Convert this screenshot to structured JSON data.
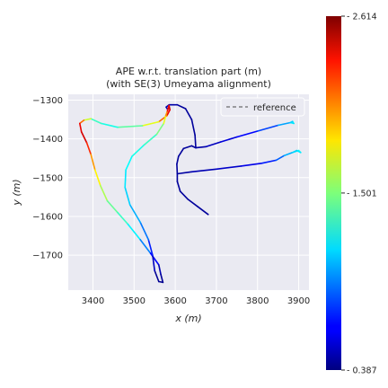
{
  "chart_data": {
    "type": "line",
    "title": "APE w.r.t. translation part (m)",
    "subtitle": "(with SE(3) Umeyama alignment)",
    "xlabel": "x (m)",
    "ylabel": "y (m)",
    "xlim": [
      3340,
      3925
    ],
    "ylim": [
      -1790,
      -1285
    ],
    "xticks": [
      3400,
      3500,
      3600,
      3700,
      3800,
      3900
    ],
    "yticks": [
      -1300,
      -1400,
      -1500,
      -1600,
      -1700
    ],
    "xtick_labels": [
      "3400",
      "3500",
      "3600",
      "3700",
      "3800",
      "3900"
    ],
    "ytick_labels": [
      "−1300",
      "−1400",
      "−1500",
      "−1600",
      "−1700"
    ],
    "grid": true,
    "legend": {
      "position": "top-right",
      "entries": [
        "reference"
      ]
    },
    "colorbar": {
      "colormap": "jet",
      "min": 0.387,
      "max": 2.614,
      "ticks": [
        0.387,
        1.501,
        2.614
      ],
      "tick_labels": [
        "0.387",
        "1.501",
        "2.614"
      ]
    },
    "series": [
      {
        "points": [
          [
            3680,
            -1595,
            0.45
          ],
          [
            3655,
            -1575,
            0.45
          ],
          [
            3630,
            -1555,
            0.45
          ],
          [
            3612,
            -1535,
            0.45
          ],
          [
            3605,
            -1510,
            0.45
          ],
          [
            3605,
            -1490,
            0.45
          ],
          [
            3640,
            -1485,
            0.48
          ],
          [
            3700,
            -1478,
            0.52
          ],
          [
            3760,
            -1470,
            0.58
          ],
          [
            3810,
            -1463,
            0.65
          ],
          [
            3845,
            -1455,
            0.8
          ],
          [
            3865,
            -1443,
            0.95
          ],
          [
            3885,
            -1435,
            1.15
          ],
          [
            3900,
            -1430,
            1.25
          ],
          [
            3905,
            -1435,
            1.2
          ],
          [
            3895,
            -1430,
            1.15
          ],
          [
            3885,
            -1435,
            1.1
          ]
        ]
      },
      {
        "points": [
          [
            3605,
            -1490,
            0.45
          ],
          [
            3604,
            -1465,
            0.45
          ],
          [
            3608,
            -1445,
            0.45
          ],
          [
            3620,
            -1425,
            0.45
          ],
          [
            3640,
            -1418,
            0.45
          ],
          [
            3650,
            -1423,
            0.45
          ],
          [
            3675,
            -1420,
            0.5
          ],
          [
            3710,
            -1408,
            0.55
          ],
          [
            3750,
            -1395,
            0.62
          ],
          [
            3800,
            -1380,
            0.72
          ],
          [
            3850,
            -1365,
            0.9
          ],
          [
            3880,
            -1358,
            1.15
          ],
          [
            3888,
            -1360,
            1.2
          ],
          [
            3885,
            -1355,
            1.15
          ],
          [
            3880,
            -1358,
            1.1
          ]
        ]
      },
      {
        "points": [
          [
            3650,
            -1423,
            0.45
          ],
          [
            3648,
            -1390,
            0.45
          ],
          [
            3640,
            -1350,
            0.45
          ],
          [
            3625,
            -1322,
            0.45
          ],
          [
            3605,
            -1312,
            0.45
          ],
          [
            3585,
            -1312,
            0.5
          ],
          [
            3578,
            -1318,
            0.5
          ],
          [
            3582,
            -1325,
            0.5
          ],
          [
            3585,
            -1314,
            2.5
          ],
          [
            3587,
            -1325,
            2.45
          ],
          [
            3580,
            -1340,
            2.3
          ],
          [
            3560,
            -1356,
            1.9
          ],
          [
            3520,
            -1366,
            1.55
          ],
          [
            3460,
            -1370,
            1.3
          ],
          [
            3420,
            -1360,
            1.25
          ],
          [
            3395,
            -1348,
            1.45
          ],
          [
            3378,
            -1352,
            1.9
          ],
          [
            3368,
            -1360,
            2.3
          ],
          [
            3372,
            -1382,
            2.45
          ],
          [
            3385,
            -1410,
            2.4
          ],
          [
            3395,
            -1440,
            2.1
          ],
          [
            3405,
            -1480,
            1.9
          ],
          [
            3418,
            -1520,
            1.7
          ],
          [
            3435,
            -1560,
            1.5
          ],
          [
            3460,
            -1590,
            1.4
          ],
          [
            3485,
            -1620,
            1.3
          ],
          [
            3515,
            -1660,
            1.1
          ],
          [
            3540,
            -1695,
            0.8
          ],
          [
            3560,
            -1725,
            0.55
          ],
          [
            3565,
            -1750,
            0.45
          ],
          [
            3570,
            -1770,
            0.42
          ],
          [
            3560,
            -1768,
            0.42
          ],
          [
            3550,
            -1740,
            0.45
          ],
          [
            3545,
            -1700,
            0.6
          ],
          [
            3535,
            -1660,
            0.85
          ],
          [
            3515,
            -1615,
            1.0
          ],
          [
            3490,
            -1570,
            1.1
          ],
          [
            3478,
            -1525,
            1.15
          ],
          [
            3480,
            -1480,
            1.2
          ],
          [
            3495,
            -1445,
            1.25
          ],
          [
            3525,
            -1415,
            1.3
          ],
          [
            3555,
            -1388,
            1.4
          ],
          [
            3572,
            -1360,
            1.6
          ],
          [
            3577,
            -1340,
            1.85
          ],
          [
            3581,
            -1328,
            2.2
          ],
          [
            3585,
            -1314,
            2.5
          ]
        ]
      }
    ]
  }
}
